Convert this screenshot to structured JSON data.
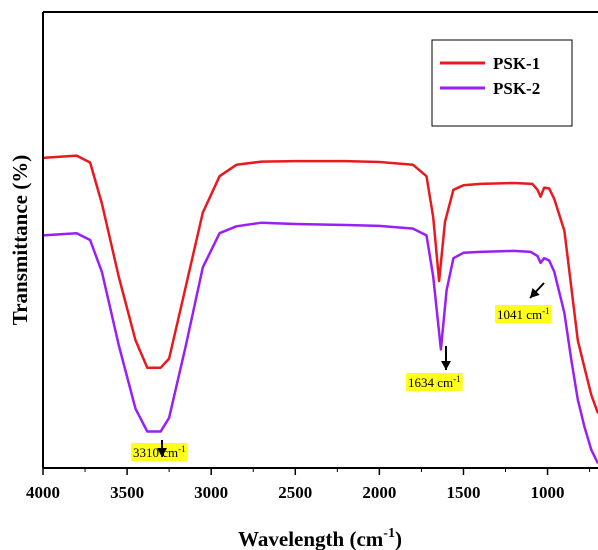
{
  "chart_data": {
    "type": "line",
    "xlabel": "Wavelength (cm",
    "xlabel_sup": "-1",
    "xlabel_end": ")",
    "ylabel": "Transmittance (%)",
    "xlim": [
      4000,
      700
    ],
    "x_reversed": true,
    "ylim": [
      0,
      100
    ],
    "y_ticks_shown": false,
    "x_ticks": [
      4000,
      3500,
      3000,
      2500,
      2000,
      1500,
      1000
    ],
    "x_tick_labels": [
      "4000",
      "3500",
      "3000",
      "2500",
      "2000",
      "1500",
      "1000"
    ],
    "grid": false,
    "legend": {
      "placement": "top-right"
    },
    "series": [
      {
        "name": "PSK-1",
        "color": "#e8191f",
        "points": [
          [
            4000,
            68
          ],
          [
            3800,
            68.5
          ],
          [
            3720,
            67
          ],
          [
            3650,
            58
          ],
          [
            3550,
            42
          ],
          [
            3450,
            28
          ],
          [
            3380,
            22
          ],
          [
            3300,
            22
          ],
          [
            3250,
            24
          ],
          [
            3150,
            40
          ],
          [
            3050,
            56
          ],
          [
            2950,
            64
          ],
          [
            2850,
            66.5
          ],
          [
            2700,
            67.2
          ],
          [
            2500,
            67.3
          ],
          [
            2200,
            67.3
          ],
          [
            2000,
            67.1
          ],
          [
            1800,
            66.5
          ],
          [
            1720,
            64
          ],
          [
            1680,
            55
          ],
          [
            1645,
            41
          ],
          [
            1610,
            54
          ],
          [
            1560,
            61
          ],
          [
            1500,
            62
          ],
          [
            1400,
            62.3
          ],
          [
            1200,
            62.5
          ],
          [
            1090,
            62.3
          ],
          [
            1060,
            61
          ],
          [
            1041,
            59.5
          ],
          [
            1020,
            61.5
          ],
          [
            990,
            61.3
          ],
          [
            960,
            59
          ],
          [
            900,
            52
          ],
          [
            860,
            40
          ],
          [
            820,
            28
          ],
          [
            780,
            22
          ],
          [
            740,
            16
          ],
          [
            700,
            12
          ]
        ]
      },
      {
        "name": "PSK-2",
        "color": "#9a1ff5",
        "points": [
          [
            4000,
            51
          ],
          [
            3800,
            51.5
          ],
          [
            3720,
            50
          ],
          [
            3650,
            43
          ],
          [
            3550,
            27
          ],
          [
            3450,
            13
          ],
          [
            3380,
            8
          ],
          [
            3300,
            8
          ],
          [
            3250,
            11
          ],
          [
            3150,
            27
          ],
          [
            3050,
            44
          ],
          [
            2950,
            51.5
          ],
          [
            2850,
            53
          ],
          [
            2700,
            53.8
          ],
          [
            2500,
            53.5
          ],
          [
            2200,
            53.3
          ],
          [
            2000,
            53.1
          ],
          [
            1800,
            52.5
          ],
          [
            1720,
            51
          ],
          [
            1680,
            42
          ],
          [
            1634,
            26
          ],
          [
            1600,
            39
          ],
          [
            1560,
            46
          ],
          [
            1500,
            47.2
          ],
          [
            1400,
            47.4
          ],
          [
            1200,
            47.6
          ],
          [
            1100,
            47.4
          ],
          [
            1060,
            46.5
          ],
          [
            1041,
            45
          ],
          [
            1020,
            46
          ],
          [
            990,
            45.5
          ],
          [
            960,
            43
          ],
          [
            900,
            34
          ],
          [
            860,
            24
          ],
          [
            820,
            15
          ],
          [
            780,
            9
          ],
          [
            740,
            4
          ],
          [
            700,
            1
          ]
        ]
      }
    ],
    "annotations": [
      {
        "text": "3310 cm",
        "sup": "-1",
        "x": 3310
      },
      {
        "text": "1634 cm",
        "sup": "-1",
        "x": 1634
      },
      {
        "text": "1041 cm",
        "sup": "-1",
        "x": 1041
      }
    ]
  }
}
